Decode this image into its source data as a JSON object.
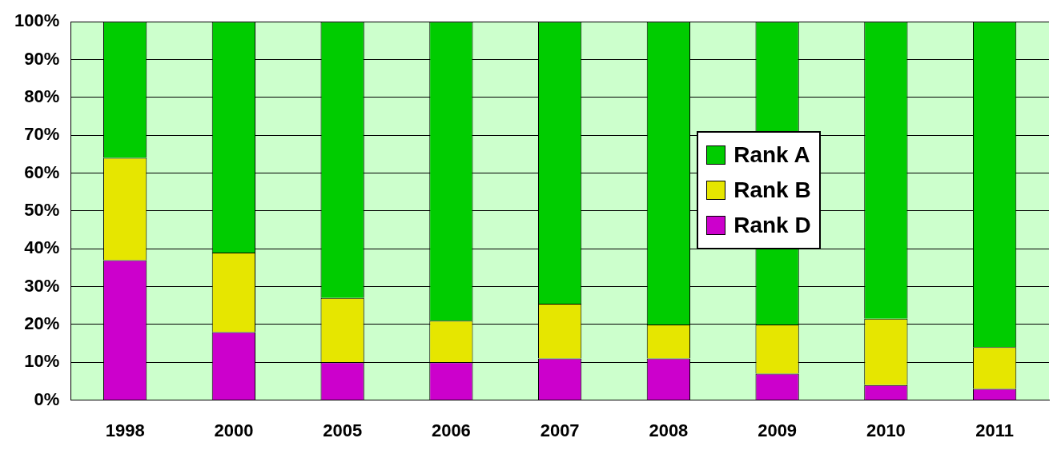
{
  "chart_data": {
    "type": "bar",
    "stacked": true,
    "categories": [
      "1998",
      "2000",
      "2005",
      "2006",
      "2007",
      "2008",
      "2009",
      "2010",
      "2011"
    ],
    "series": [
      {
        "name": "Rank D",
        "color": "#cc00cc",
        "values": [
          37,
          18,
          10,
          10,
          11,
          11,
          7,
          4,
          3
        ]
      },
      {
        "name": "Rank B",
        "color": "#e6e600",
        "values": [
          27,
          21,
          17,
          11,
          14.5,
          9,
          13,
          17.5,
          11
        ]
      },
      {
        "name": "Rank A",
        "color": "#00cc00",
        "values": [
          36,
          61,
          73,
          79,
          74.5,
          80,
          80,
          78.5,
          86
        ]
      }
    ],
    "ylim": [
      0,
      100
    ],
    "yticks": [
      {
        "value": 0,
        "label": "0%"
      },
      {
        "value": 10,
        "label": "10%"
      },
      {
        "value": 20,
        "label": "20%"
      },
      {
        "value": 30,
        "label": "30%"
      },
      {
        "value": 40,
        "label": "40%"
      },
      {
        "value": 50,
        "label": "50%"
      },
      {
        "value": 60,
        "label": "60%"
      },
      {
        "value": 70,
        "label": "70%"
      },
      {
        "value": 80,
        "label": "80%"
      },
      {
        "value": 90,
        "label": "90%"
      },
      {
        "value": 100,
        "label": "100%"
      }
    ],
    "grid": "y",
    "legend": "right"
  }
}
